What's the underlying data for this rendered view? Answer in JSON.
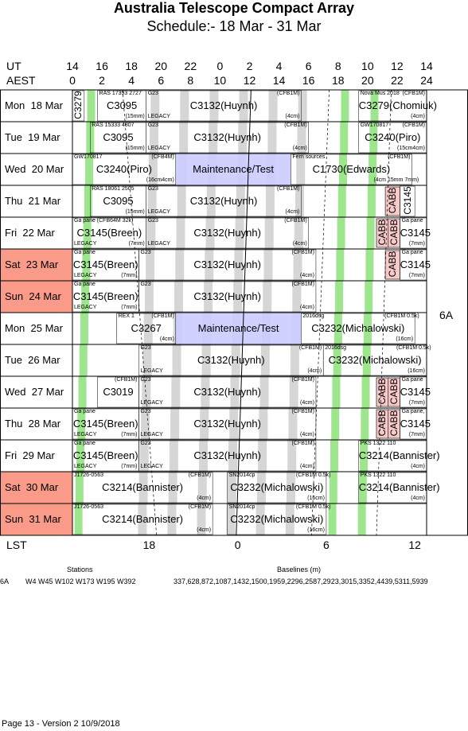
{
  "title": "Australia Telescope Compact Array",
  "subtitle": "Schedule:- 18 Mar - 31 Mar",
  "axis": {
    "ut_label": "UT",
    "aest_label": "AEST",
    "lst_label": "LST",
    "ut_ticks": [
      "14",
      "16",
      "18",
      "20",
      "22",
      "0",
      "2",
      "4",
      "6",
      "8",
      "10",
      "12",
      "14"
    ],
    "aest_ticks": [
      "0",
      "2",
      "4",
      "6",
      "8",
      "10",
      "12",
      "14",
      "16",
      "18",
      "20",
      "22",
      "24"
    ],
    "lst_ticks": [
      {
        "label": "18",
        "aest": 5.2
      },
      {
        "label": "0",
        "aest": 11.2
      },
      {
        "label": "6",
        "aest": 17.2
      },
      {
        "label": "12",
        "aest": 23.2
      }
    ]
  },
  "array_config": "6A",
  "days": [
    {
      "label": "Mon  18 Mar",
      "weekend": false,
      "blocks": [
        {
          "s": 0,
          "e": 0.8,
          "t": "",
          "v": true,
          "code": "C3279"
        },
        {
          "s": 1.7,
          "e": 5,
          "t": "C3095",
          "tl": "RAS 17393 2727",
          "br": "(15mm)"
        },
        {
          "s": 5,
          "e": 15.5,
          "t": "C3132(Huynh)",
          "tl": "G23",
          "tr": "(CFB1M)",
          "bl": "LEGACY",
          "br": "(4cm)"
        },
        {
          "s": 19.4,
          "e": 24,
          "t": "C3279(Chomiuk)",
          "tl": "Nova Mus 2018",
          "tr": "(CFB1M)",
          "br": "(4cm)"
        }
      ]
    },
    {
      "label": "Tue  19 Mar",
      "weekend": false,
      "blocks": [
        {
          "s": 1.2,
          "e": 5,
          "t": "C3095",
          "tl": "RAS 15333 4807",
          "br": "(15mm)"
        },
        {
          "s": 5,
          "e": 16,
          "t": "C3132(Huynh)",
          "tl": "G23",
          "tr": "(CFB1M)",
          "bl": "LEGACY",
          "br": "(4cm)"
        },
        {
          "s": 19.4,
          "e": 24,
          "t": "C3240(Piro)",
          "tl": "GW170817",
          "tr": "(CFB1M)",
          "br": "(15cm4cm)"
        }
      ]
    },
    {
      "label": "Wed  20 Mar",
      "weekend": false,
      "blocks": [
        {
          "s": 0,
          "e": 7,
          "t": "C3240(Piro)",
          "tl": "GW170817",
          "tr": "(CFB4M)",
          "br": "(16cm4cm)"
        },
        {
          "s": 7,
          "e": 14.8,
          "t": "Maintenance/Test"
        },
        {
          "s": 14.8,
          "e": 23,
          "t": "C1730(Edwards)",
          "tl": "Fern sources",
          "tr": "(CFB1M)",
          "br": "(4cm 15mm 7mm)"
        }
      ]
    },
    {
      "label": "Thu  21 Mar",
      "weekend": false,
      "blocks": [
        {
          "s": 1.2,
          "e": 5,
          "t": "C3095",
          "tl": "RAS 18061 2505",
          "br": "(15mm)"
        },
        {
          "s": 5,
          "e": 15.5,
          "t": "C3132(Huynh)",
          "tl": "G23",
          "tr": "(CFB1M)",
          "bl": "LEGACY",
          "br": "(4cm)"
        },
        {
          "s": 21.2,
          "e": 22.2,
          "t": "",
          "v": true,
          "code": "CABB",
          "pink": true
        },
        {
          "s": 22.2,
          "e": 23.2,
          "t": "",
          "v": true,
          "code": "C3145"
        }
      ]
    },
    {
      "label": "Fri  22 Mar",
      "weekend": false,
      "blocks": [
        {
          "s": 0,
          "e": 5,
          "t": "C3145(Breen)",
          "tl": "Ga pane (CFB64M 32k)",
          "bl": "LEGACY",
          "br": "(7mm)"
        },
        {
          "s": 5,
          "e": 16,
          "t": "C3132(Huynh)",
          "tl": "G23",
          "tr": "(CFB1M)",
          "bl": "LEGACY",
          "br": "(4cm)"
        },
        {
          "s": 20.6,
          "e": 21.4,
          "t": "",
          "v": true,
          "code": "CABB",
          "pink": true
        },
        {
          "s": 21.4,
          "e": 22.2,
          "t": "",
          "v": true,
          "code": "CABB",
          "pink": true
        },
        {
          "s": 22.2,
          "e": 24,
          "t": "C3145",
          "tl": "Ga pane",
          "br": "(7mm)"
        }
      ]
    },
    {
      "label": "Sat  23 Mar",
      "weekend": true,
      "blocks": [
        {
          "s": 0,
          "e": 4.5,
          "t": "C3145(Breen)",
          "tl": "Ga pane",
          "bl": "LEGACY",
          "br": "(7mm)"
        },
        {
          "s": 4.5,
          "e": 16.5,
          "t": "C3132(Huynh)",
          "tl": "G23",
          "tr": "(CFB1M)",
          "br": "(4cm)"
        },
        {
          "s": 21.2,
          "e": 22.2,
          "t": "",
          "v": true,
          "code": "CABB",
          "pink": true
        },
        {
          "s": 22.2,
          "e": 24,
          "t": "C3145",
          "tl": "Ga pane",
          "br": "(7mm)"
        }
      ]
    },
    {
      "label": "Sun  24 Mar",
      "weekend": true,
      "blocks": [
        {
          "s": 0,
          "e": 4.5,
          "t": "C3145(Breen)",
          "tl": "Ga pane",
          "bl": "LEGACY",
          "br": "(7mm)"
        },
        {
          "s": 4.5,
          "e": 16.5,
          "t": "C3132(Huynh)",
          "tl": "G23",
          "tr": "(CFB1M)",
          "br": "(4cm)"
        }
      ]
    },
    {
      "label": "Mon  25 Mar",
      "weekend": false,
      "blocks": [
        {
          "s": 3,
          "e": 7,
          "t": "C3267",
          "tl": "REX 1",
          "tr": "(CFB1M)",
          "br": "(4cm)"
        },
        {
          "s": 7,
          "e": 15.5,
          "t": "Maintenance/Test"
        },
        {
          "s": 15.5,
          "e": 23.2,
          "t": "C3232(Michalowski)",
          "tl": "2016dsg",
          "tr": "(CFB1M 0.5k)",
          "br": "(16cm)"
        }
      ]
    },
    {
      "label": "Tue  26 Mar",
      "weekend": false,
      "blocks": [
        {
          "s": 4.5,
          "e": 17,
          "t": "C3132(Huynh)",
          "tl": "G23",
          "tr": "(CFB1M)",
          "bl": "LEGACY",
          "br": "(4cm)"
        },
        {
          "s": 17,
          "e": 24,
          "t": "C3232(Michalowski)",
          "tl": "2016dsg",
          "tr": "(CFB1M 0.5k)",
          "br": "(16cm)"
        }
      ]
    },
    {
      "label": "Wed  27 Mar",
      "weekend": false,
      "blocks": [
        {
          "s": 1.7,
          "e": 4.5,
          "t": "C3019",
          "tr": "(CFB1M)"
        },
        {
          "s": 4.5,
          "e": 16.5,
          "t": "C3132(Huynh)",
          "tl": "G23",
          "tr": "(CFB1M)",
          "bl": "LEGACY",
          "br": "(4cm)"
        },
        {
          "s": 20.6,
          "e": 21.4,
          "t": "",
          "v": true,
          "code": "CABB",
          "pink": true
        },
        {
          "s": 21.4,
          "e": 22.2,
          "t": "",
          "v": true,
          "code": "CABB",
          "pink": true
        },
        {
          "s": 22.2,
          "e": 24,
          "t": "C3145",
          "tl": "Ga pane",
          "br": "(7mm)"
        }
      ]
    },
    {
      "label": "Thu  28 Mar",
      "weekend": false,
      "blocks": [
        {
          "s": 0,
          "e": 4.5,
          "t": "C3145(Breen)",
          "tl": "Ga pane",
          "bl": "LEGACY",
          "br": "(7mm)"
        },
        {
          "s": 4.5,
          "e": 16.5,
          "t": "C3132(Huynh)",
          "tl": "G23",
          "tr": "(CFB1M)",
          "bl": "LEGACY",
          "br": "(4cm)"
        },
        {
          "s": 20.6,
          "e": 21.4,
          "t": "",
          "v": true,
          "code": "CABB",
          "pink": true
        },
        {
          "s": 21.4,
          "e": 22.2,
          "t": "",
          "v": true,
          "code": "CABB",
          "pink": true
        },
        {
          "s": 22.2,
          "e": 24,
          "t": "C3145",
          "tl": "Ga pane,",
          "br": "(7mm)"
        }
      ]
    },
    {
      "label": "Fri  29 Mar",
      "weekend": false,
      "blocks": [
        {
          "s": 0,
          "e": 4.5,
          "t": "C3145(Breen)",
          "tl": "Ga pane",
          "bl": "LEGACY",
          "br": "(7mm)"
        },
        {
          "s": 4.5,
          "e": 16.5,
          "t": "C3132(Huynh)",
          "tl": "G23",
          "tr": "(CFB1M)",
          "bl": "LEGACY",
          "br": "(4cm)"
        },
        {
          "s": 19.4,
          "e": 24,
          "t": "C3214(Bannister)",
          "tl": "PKS 1322 110",
          "br": "(4cm)"
        }
      ]
    },
    {
      "label": "Sat  30 Mar",
      "weekend": true,
      "blocks": [
        {
          "s": 0,
          "e": 9.5,
          "t": "C3214(Bannister)",
          "tl": "J1726-0563",
          "tr": "(CFB1M)",
          "br": "(4cm)"
        },
        {
          "s": 10.5,
          "e": 17.2,
          "t": "C3232(Michalowski)",
          "tl": "SN2014cp",
          "tr": "(CFB1M 0.5k)",
          "br": "(16cm)"
        },
        {
          "s": 19.4,
          "e": 24,
          "t": "C3214(Bannister)",
          "tl": "PKS 1322 110",
          "br": "(4cm)"
        }
      ]
    },
    {
      "label": "Sun  31 Mar",
      "weekend": true,
      "blocks": [
        {
          "s": 0,
          "e": 9.5,
          "t": "C3214(Bannister)",
          "tl": "J1726-0563",
          "tr": "(CFB1M)",
          "br": "(4cm)"
        },
        {
          "s": 10.5,
          "e": 17.2,
          "t": "C3232(Michalowski)",
          "tl": "SN2014cp",
          "tr": "(CFB1M 0.5k)",
          "br": "(16cm)"
        }
      ]
    }
  ],
  "stations": {
    "title": "Stations",
    "config": "6A",
    "list": "W4 W45 W102 W173 W195 W392"
  },
  "baselines": {
    "title": "Baselines (m)",
    "list": "337,628,872,1087,1432,1500,1959,2296,2587,2923,3015,3352,4439,5311,5939"
  },
  "footer": "Page 13 - Version 2  10/9/2018",
  "colors": {
    "weekend": "#fa9b8a",
    "green": "#9ee68d",
    "gray": "#d6d6d6",
    "maint": "#ccccff",
    "cabb": "#f7c9c9"
  }
}
